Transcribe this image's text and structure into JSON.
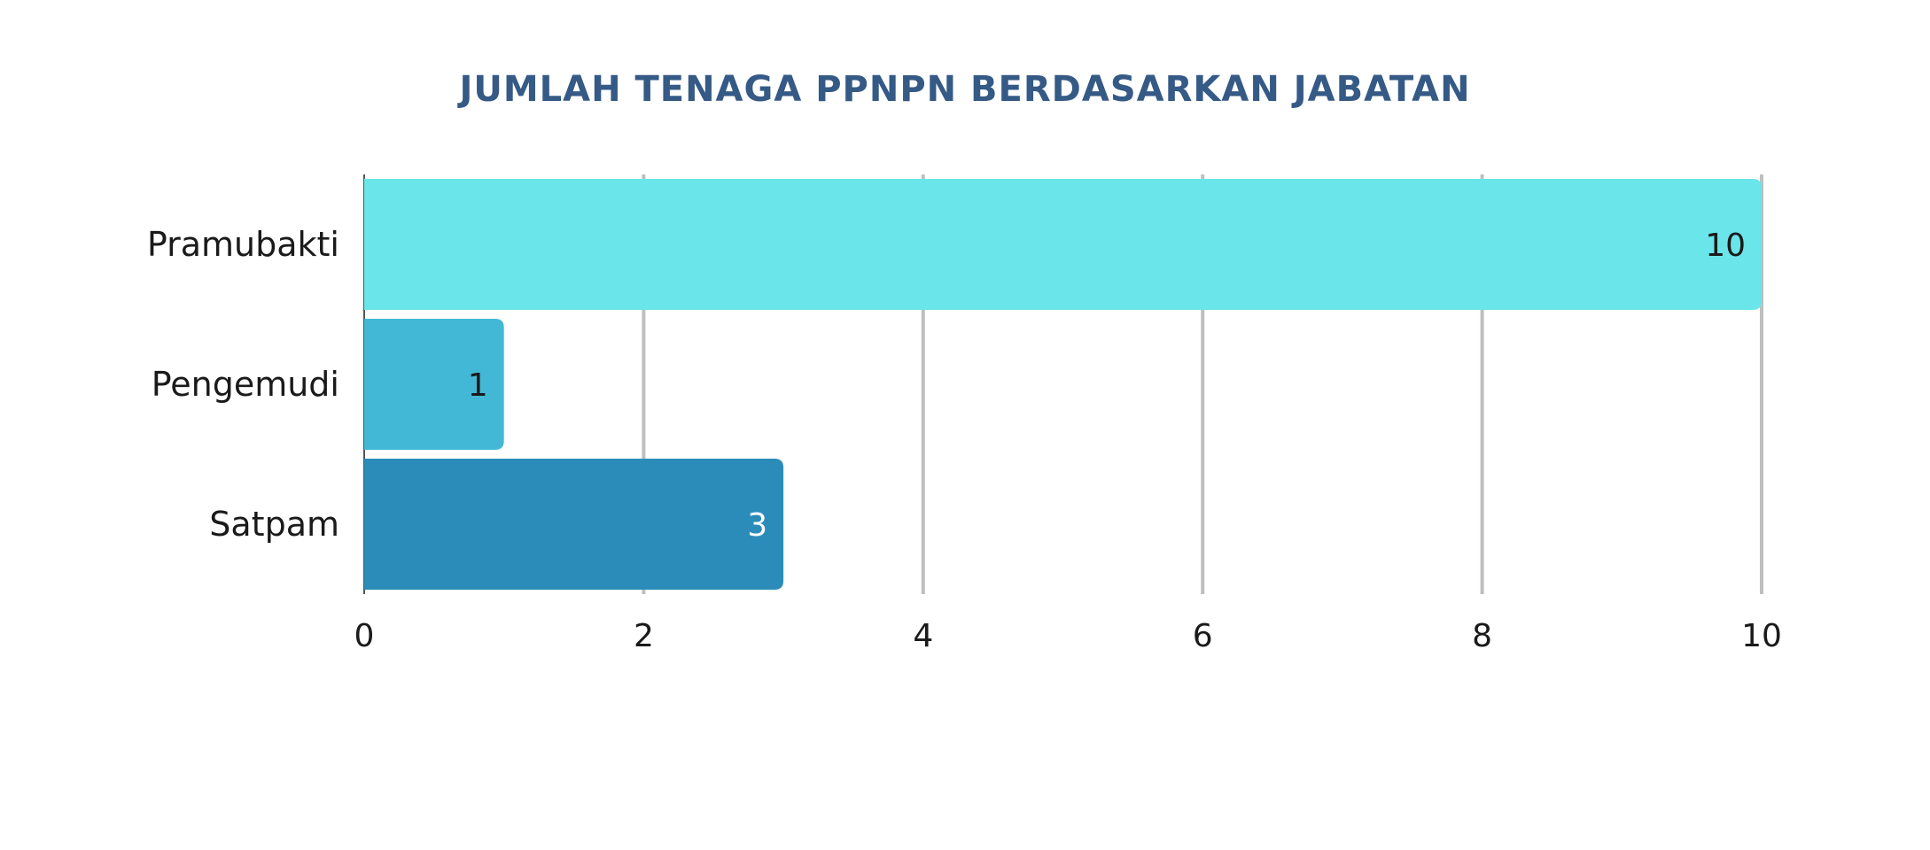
{
  "chart_data": {
    "type": "bar",
    "orientation": "horizontal",
    "title": "JUMLAH TENAGA PPNPN BERDASARKAN JABATAN",
    "xlabel": "",
    "ylabel": "",
    "categories": [
      "Pramubakti",
      "Pengemudi",
      "Satpam"
    ],
    "values": [
      10,
      1,
      3
    ],
    "colors": [
      "#6AE5E9",
      "#42B8D6",
      "#2C8CB9"
    ],
    "value_label_colors": [
      "#1a1a1a",
      "#1a1a1a",
      "#ffffff"
    ],
    "xlim": [
      0,
      10
    ],
    "xticks": [
      0,
      2,
      4,
      6,
      8,
      10
    ],
    "xtick_labels": [
      "0",
      "2",
      "4",
      "6",
      "8",
      "10"
    ],
    "grid": true,
    "grid_color": "#BFBFBF",
    "legend": "none"
  }
}
